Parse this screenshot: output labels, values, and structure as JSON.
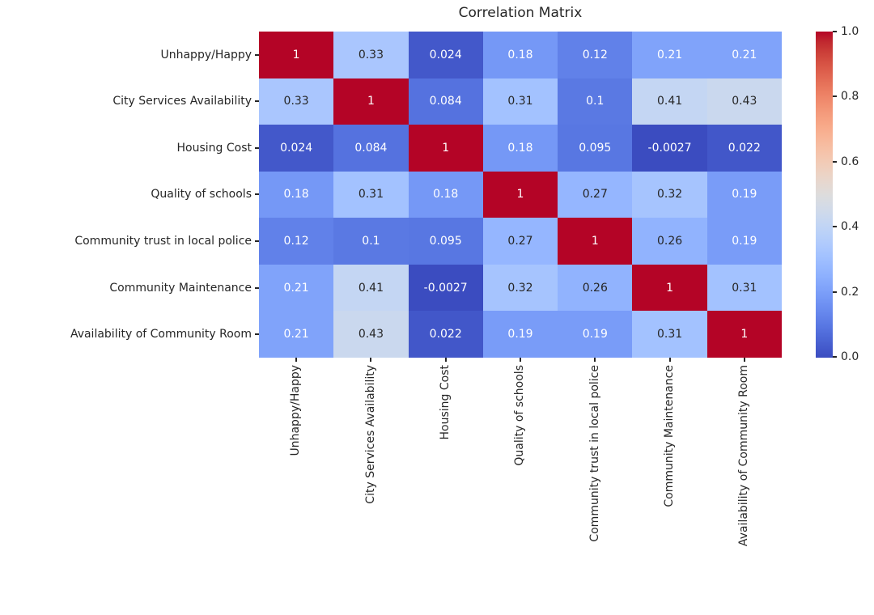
{
  "chart_data": {
    "type": "heatmap",
    "title": "Correlation Matrix",
    "categories": [
      "Unhappy/Happy",
      "City Services Availability",
      "Housing Cost",
      "Quality of schools",
      "Community trust in local police",
      "Community Maintenance",
      "Availability of Community Room"
    ],
    "matrix": [
      [
        1,
        0.33,
        0.024,
        0.18,
        0.12,
        0.21,
        0.21
      ],
      [
        0.33,
        1,
        0.084,
        0.31,
        0.1,
        0.41,
        0.43
      ],
      [
        0.024,
        0.084,
        1,
        0.18,
        0.095,
        -0.0027,
        0.022
      ],
      [
        0.18,
        0.31,
        0.18,
        1,
        0.27,
        0.32,
        0.19
      ],
      [
        0.12,
        0.1,
        0.095,
        0.27,
        1,
        0.26,
        0.19
      ],
      [
        0.21,
        0.41,
        -0.0027,
        0.32,
        0.26,
        1,
        0.31
      ],
      [
        0.21,
        0.43,
        0.022,
        0.19,
        0.19,
        0.31,
        1
      ]
    ],
    "cell_labels": [
      [
        "1",
        "0.33",
        "0.024",
        "0.18",
        "0.12",
        "0.21",
        "0.21"
      ],
      [
        "0.33",
        "1",
        "0.084",
        "0.31",
        "0.1",
        "0.41",
        "0.43"
      ],
      [
        "0.024",
        "0.084",
        "1",
        "0.18",
        "0.095",
        "-0.0027",
        "0.022"
      ],
      [
        "0.18",
        "0.31",
        "0.18",
        "1",
        "0.27",
        "0.32",
        "0.19"
      ],
      [
        "0.12",
        "0.1",
        "0.095",
        "0.27",
        "1",
        "0.26",
        "0.19"
      ],
      [
        "0.21",
        "0.41",
        "-0.0027",
        "0.32",
        "0.26",
        "1",
        "0.31"
      ],
      [
        "0.21",
        "0.43",
        "0.022",
        "0.19",
        "0.19",
        "0.31",
        "1"
      ]
    ],
    "xlabel": "",
    "ylabel": "",
    "colormap": "coolwarm",
    "colormap_anchors": [
      "#3b4cc0",
      "#445acc",
      "#4d68d7",
      "#5775e1",
      "#6282ea",
      "#6c8ef1",
      "#779af7",
      "#82a5fb",
      "#8db0fe",
      "#98b9ff",
      "#a3c2ff",
      "#aec9fd",
      "#b8d0f9",
      "#c2d5f4",
      "#ccd9ed",
      "#d5dbe5",
      "#dddcdc",
      "#e5d8d1",
      "#ecd3c5",
      "#f1ccb8",
      "#f5c4ac",
      "#f7bb9f",
      "#f8b192",
      "#f7a686",
      "#f49a7b",
      "#f18d6f",
      "#ec7f63",
      "#e57058",
      "#de604d",
      "#d55042",
      "#cb3e38",
      "#c0282f",
      "#b40426"
    ],
    "vmin": -0.0027,
    "vmax": 1.0,
    "grid_on": false,
    "legend_position": "right",
    "colorbar_ticks": [
      1.0,
      0.8,
      0.6,
      0.4,
      0.2,
      0.0
    ],
    "colorbar_tick_labels": [
      "1.0",
      "0.8",
      "0.6",
      "0.4",
      "0.2",
      "0.0"
    ],
    "annotation_color_dark": "#262626",
    "annotation_color_light": "#ffffff",
    "background_color": "#ffffff"
  }
}
